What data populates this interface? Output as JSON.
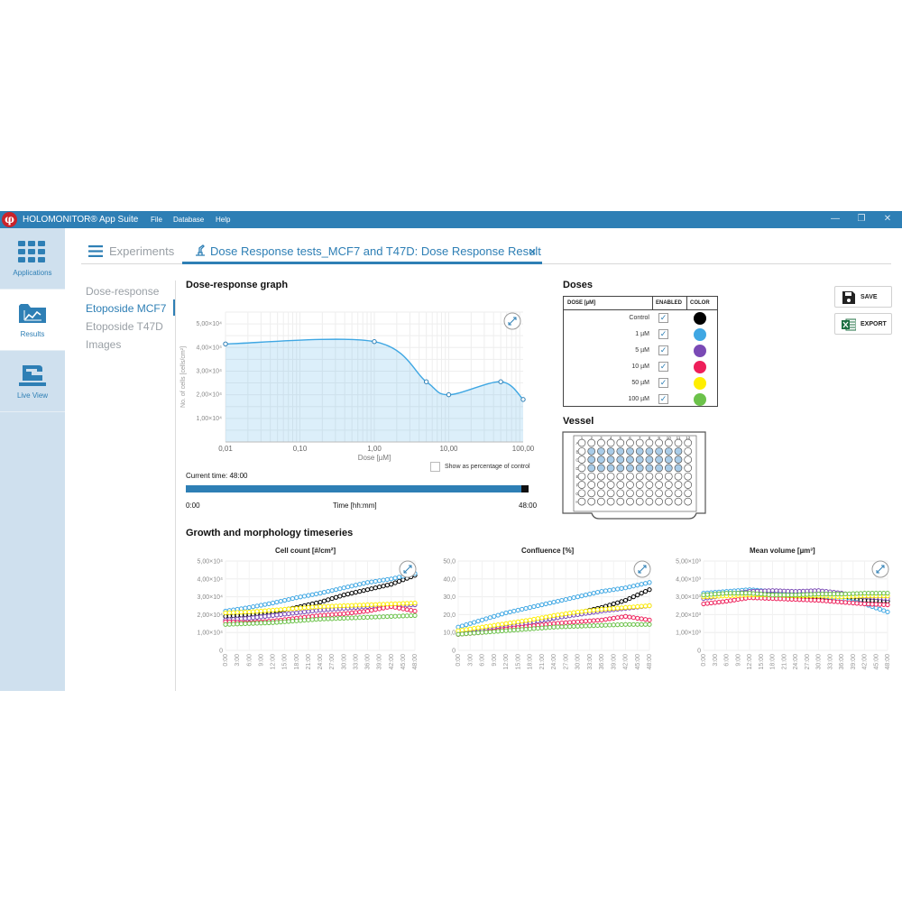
{
  "window": {
    "app_title": "HOLOMONITOR® App Suite",
    "logo_glyph": "φ",
    "menu": [
      "File",
      "Database",
      "Help"
    ],
    "controls": [
      "—",
      "❐",
      "✕"
    ]
  },
  "nav": [
    {
      "label": "Applications",
      "icon": "grid-icon",
      "active": false
    },
    {
      "label": "Results",
      "icon": "chart-folder-icon",
      "active": true
    },
    {
      "label": "Live View",
      "icon": "microscope-icon",
      "active": false
    }
  ],
  "tabs": {
    "experiments": "Experiments",
    "active": "Dose Response tests_MCF7 and T47D: Dose Response Result",
    "close": "×"
  },
  "subnav": [
    "Dose-response",
    "Etoposide MCF7",
    "Etoposide T47D",
    "Images"
  ],
  "subnav_active": 1,
  "dose_graph": {
    "title": "Dose-response graph",
    "show_pct_label": "Show as percentage of control",
    "current_time_label": "Current time: 48:00",
    "time_start": "0:00",
    "time_end": "48:00",
    "time_axis_label": "Time [hh:mm]"
  },
  "doses": {
    "title": "Doses",
    "headers": [
      "DOSE [µM]",
      "ENABLED",
      "COLOR"
    ],
    "check_glyph": "✓",
    "rows": [
      {
        "dose": "Control",
        "enabled": true,
        "color": "#000000"
      },
      {
        "dose": "1 µM",
        "enabled": true,
        "color": "#3fa7e3"
      },
      {
        "dose": "5 µM",
        "enabled": true,
        "color": "#7a4ab5"
      },
      {
        "dose": "10 µM",
        "enabled": true,
        "color": "#ee1f5a"
      },
      {
        "dose": "50 µM",
        "enabled": true,
        "color": "#ffee00"
      },
      {
        "dose": "100 µM",
        "enabled": true,
        "color": "#6cc24a"
      }
    ]
  },
  "vessel": {
    "title": "Vessel",
    "rows": [
      "A",
      "B",
      "C",
      "D",
      "E",
      "F",
      "G",
      "H"
    ],
    "cols": [
      "1",
      "2",
      "3",
      "4",
      "5",
      "6",
      "7",
      "8",
      "9",
      "10",
      "11",
      "12"
    ]
  },
  "buttons": {
    "save": "SAVE",
    "export": "EXPORT"
  },
  "timeseries_title": "Growth and morphology timeseries",
  "colors": {
    "accent": "#2e7fb5",
    "nav_bg": "#cfe0ee"
  },
  "chart_data": [
    {
      "id": "dose",
      "type": "line",
      "title": "",
      "xlabel": "Dose [µM]",
      "ylabel": "No. of cells [cells/cm²]",
      "x_scale": "log",
      "xlim": [
        0.01,
        100
      ],
      "ylim": [
        0,
        55000
      ],
      "x_ticks": [
        0.01,
        0.1,
        1,
        10,
        100
      ],
      "x_tick_labels": [
        "0,01",
        "0,10",
        "1,00",
        "10,00",
        "100,00"
      ],
      "y_ticks": [
        10000,
        20000,
        30000,
        40000,
        50000
      ],
      "y_tick_labels": [
        "1,00×10⁴",
        "2,00×10⁴",
        "3,00×10⁴",
        "4,00×10⁴",
        "5,00×10⁴"
      ],
      "x": [
        0.01,
        1,
        5,
        10,
        50,
        100
      ],
      "y": [
        41500,
        42500,
        25500,
        20000,
        25500,
        18000
      ],
      "grid": true,
      "fill": true
    },
    {
      "id": "cellcount",
      "type": "line",
      "title": "Cell count [#/cm²]",
      "ylim": [
        0,
        50000
      ],
      "y_ticks": [
        0,
        10000,
        20000,
        30000,
        40000,
        50000
      ],
      "y_tick_labels": [
        "0",
        "1,00×10⁴",
        "2,00×10⁴",
        "3,00×10⁴",
        "4,00×10⁴",
        "5,00×10⁴"
      ],
      "x_tick_labels": [
        "0:00",
        "3:00",
        "6:00",
        "9:00",
        "12:00",
        "15:00",
        "18:00",
        "21:00",
        "24:00",
        "27:00",
        "30:00",
        "33:00",
        "36:00",
        "39:00",
        "42:00",
        "45:00",
        "48:00"
      ],
      "xlim": [
        0,
        48
      ],
      "series": [
        {
          "color": "#000000",
          "x": [
            0,
            6,
            12,
            18,
            24,
            30,
            36,
            42,
            48
          ],
          "y": [
            19000,
            20000,
            21500,
            24000,
            27000,
            31000,
            34000,
            37000,
            42000
          ]
        },
        {
          "color": "#3fa7e3",
          "x": [
            0,
            6,
            12,
            18,
            24,
            30,
            36,
            42,
            48
          ],
          "y": [
            22000,
            24000,
            26500,
            29500,
            32000,
            35000,
            38000,
            40000,
            43000
          ]
        },
        {
          "color": "#7a4ab5",
          "x": [
            0,
            6,
            12,
            18,
            24,
            30,
            36,
            42,
            48
          ],
          "y": [
            17000,
            18000,
            19500,
            21000,
            22500,
            23500,
            24500,
            25000,
            25500
          ]
        },
        {
          "color": "#ee1f5a",
          "x": [
            0,
            6,
            12,
            18,
            24,
            30,
            36,
            42,
            48
          ],
          "y": [
            16000,
            15500,
            16500,
            18000,
            19500,
            20500,
            22000,
            24500,
            22000
          ]
        },
        {
          "color": "#ffee00",
          "x": [
            0,
            6,
            12,
            18,
            24,
            30,
            36,
            42,
            48
          ],
          "y": [
            21000,
            21500,
            22500,
            23500,
            24500,
            25000,
            25500,
            26000,
            26500
          ]
        },
        {
          "color": "#6cc24a",
          "x": [
            0,
            6,
            12,
            18,
            24,
            30,
            36,
            42,
            48
          ],
          "y": [
            14500,
            15000,
            15500,
            16500,
            17500,
            18000,
            18500,
            19000,
            19500
          ]
        }
      ]
    },
    {
      "id": "confluence",
      "type": "line",
      "title": "Confluence [%]",
      "ylim": [
        0,
        50
      ],
      "y_ticks": [
        0,
        10,
        20,
        30,
        40,
        50
      ],
      "y_tick_labels": [
        "0",
        "10,0",
        "20,0",
        "30,0",
        "40,0",
        "50,0"
      ],
      "x_tick_labels": [
        "0:00",
        "3:00",
        "6:00",
        "9:00",
        "12:00",
        "15:00",
        "18:00",
        "21:00",
        "24:00",
        "27:00",
        "30:00",
        "33:00",
        "36:00",
        "39:00",
        "42:00",
        "45:00",
        "48:00"
      ],
      "xlim": [
        0,
        48
      ],
      "series": [
        {
          "color": "#000000",
          "x": [
            0,
            6,
            12,
            18,
            24,
            30,
            36,
            42,
            48
          ],
          "y": [
            9,
            11,
            13,
            15.5,
            18,
            21,
            24,
            28,
            34
          ]
        },
        {
          "color": "#3fa7e3",
          "x": [
            0,
            6,
            12,
            18,
            24,
            30,
            36,
            42,
            48
          ],
          "y": [
            13,
            17,
            21,
            24,
            27,
            30,
            33,
            35,
            38
          ]
        },
        {
          "color": "#7a4ab5",
          "x": [
            0,
            6,
            12,
            18,
            24,
            30,
            36,
            42,
            48
          ],
          "y": [
            9,
            11,
            13,
            15.5,
            18,
            20,
            22,
            23.5,
            25
          ]
        },
        {
          "color": "#ee1f5a",
          "x": [
            0,
            6,
            12,
            18,
            24,
            30,
            36,
            42,
            48
          ],
          "y": [
            9,
            10,
            12,
            13.5,
            15,
            16,
            17,
            19,
            17
          ]
        },
        {
          "color": "#ffee00",
          "x": [
            0,
            6,
            12,
            18,
            24,
            30,
            36,
            42,
            48
          ],
          "y": [
            11,
            13,
            15,
            17,
            19.5,
            21.5,
            23,
            24,
            25
          ]
        },
        {
          "color": "#6cc24a",
          "x": [
            0,
            6,
            12,
            18,
            24,
            30,
            36,
            42,
            48
          ],
          "y": [
            9,
            10,
            11,
            12,
            13,
            13.5,
            14,
            14.5,
            14.5
          ]
        }
      ]
    },
    {
      "id": "meanvolume",
      "type": "line",
      "title": "Mean volume [µm³]",
      "ylim": [
        0,
        5000
      ],
      "y_ticks": [
        0,
        1000,
        2000,
        3000,
        4000,
        5000
      ],
      "y_tick_labels": [
        "0",
        "1,00×10³",
        "2,00×10³",
        "3,00×10³",
        "4,00×10³",
        "5,00×10³"
      ],
      "x_tick_labels": [
        "0:00",
        "3:00",
        "6:00",
        "9:00",
        "12:00",
        "15:00",
        "18:00",
        "21:00",
        "24:00",
        "27:00",
        "30:00",
        "33:00",
        "36:00",
        "39:00",
        "42:00",
        "45:00",
        "48:00"
      ],
      "xlim": [
        0,
        48
      ],
      "series": [
        {
          "color": "#000000",
          "x": [
            0,
            6,
            12,
            18,
            24,
            30,
            36,
            42,
            48
          ],
          "y": [
            3000,
            3200,
            3300,
            3150,
            3000,
            2950,
            2850,
            2800,
            2750
          ]
        },
        {
          "color": "#3fa7e3",
          "x": [
            0,
            6,
            12,
            18,
            24,
            30,
            36,
            42,
            48
          ],
          "y": [
            3200,
            3300,
            3400,
            3300,
            3200,
            3050,
            2850,
            2600,
            2150
          ]
        },
        {
          "color": "#7a4ab5",
          "x": [
            0,
            6,
            12,
            18,
            24,
            30,
            36,
            42,
            48
          ],
          "y": [
            2900,
            3100,
            3300,
            3350,
            3300,
            3350,
            3200,
            3000,
            2900
          ]
        },
        {
          "color": "#ee1f5a",
          "x": [
            0,
            6,
            12,
            18,
            24,
            30,
            36,
            42,
            48
          ],
          "y": [
            2600,
            2750,
            2950,
            2900,
            2850,
            2800,
            2700,
            2600,
            2550
          ]
        },
        {
          "color": "#ffee00",
          "x": [
            0,
            6,
            12,
            18,
            24,
            30,
            36,
            42,
            48
          ],
          "y": [
            3000,
            3050,
            3100,
            3100,
            3050,
            3050,
            3000,
            3050,
            3050
          ]
        },
        {
          "color": "#6cc24a",
          "x": [
            0,
            6,
            12,
            18,
            24,
            30,
            36,
            42,
            48
          ],
          "y": [
            3100,
            3200,
            3200,
            3100,
            3100,
            3150,
            3150,
            3200,
            3200
          ]
        }
      ]
    }
  ]
}
